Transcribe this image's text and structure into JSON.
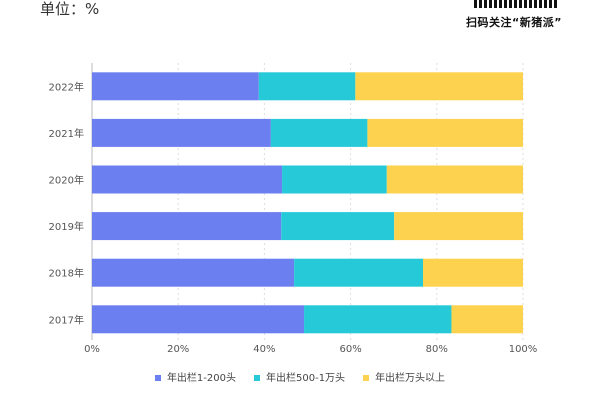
{
  "header": {
    "unit": "单位：%",
    "follow_text": "扫码关注“新猪派”"
  },
  "chart_data": {
    "type": "bar",
    "orientation": "horizontal",
    "stacked": true,
    "categories": [
      "2022年",
      "2021年",
      "2020年",
      "2019年",
      "2018年",
      "2017年"
    ],
    "series": [
      {
        "name": "年出栏1-200头",
        "color": "#6b7ff0",
        "values": [
          38.7,
          41.5,
          44.1,
          43.9,
          46.9,
          49.2
        ]
      },
      {
        "name": "年出栏500-1万头",
        "color": "#26c9d8",
        "values": [
          22.4,
          22.4,
          24.3,
          26.2,
          29.9,
          34.2
        ]
      },
      {
        "name": "年出栏万头以上",
        "color": "#fdd24e",
        "values": [
          38.9,
          36.1,
          31.6,
          29.9,
          23.2,
          16.6
        ]
      }
    ],
    "xlim": [
      0,
      100
    ],
    "xticks": [
      "0%",
      "20%",
      "40%",
      "60%",
      "80%",
      "100%"
    ],
    "grid": true,
    "legend": "bottom"
  }
}
